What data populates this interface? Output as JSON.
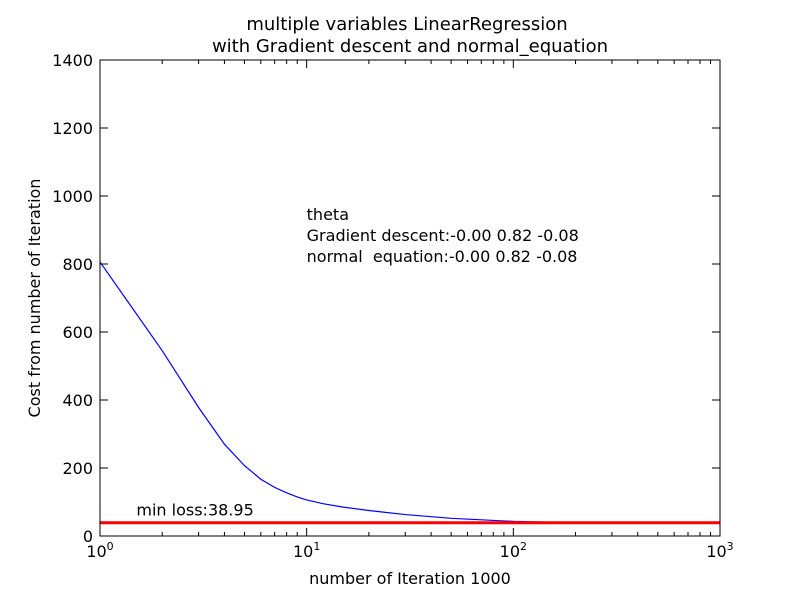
{
  "chart_data": {
    "type": "line",
    "title": "multiple variables LinearRegression",
    "subtitle": "with Gradient descent and normal_equation",
    "xlabel": "number of Iteration 1000",
    "ylabel": "Cost from number of Iteration",
    "xscale": "log",
    "xlim": [
      1,
      1000
    ],
    "ylim": [
      0,
      1400
    ],
    "grid": false,
    "y_ticks": [
      "0",
      "200",
      "400",
      "600",
      "800",
      "1000",
      "1200",
      "1400"
    ],
    "x_ticks": [
      {
        "base": "10",
        "exp": "0"
      },
      {
        "base": "10",
        "exp": "1"
      },
      {
        "base": "10",
        "exp": "2"
      },
      {
        "base": "10",
        "exp": "3"
      }
    ],
    "series": [
      {
        "color": "#0000ff",
        "x": [
          1,
          2,
          3,
          4,
          5,
          6,
          7,
          8,
          9,
          10,
          12,
          15,
          20,
          30,
          50,
          100,
          200,
          500,
          1000
        ],
        "y": [
          806,
          545,
          378,
          270,
          207,
          167,
          143,
          127,
          115,
          106,
          95,
          85,
          75,
          63,
          52,
          43,
          39,
          39,
          39
        ]
      }
    ],
    "hlines": [
      {
        "y": 38.95,
        "color": "#ff0000"
      }
    ],
    "annotations": [
      {
        "id": "min-loss",
        "text": "min loss:38.95",
        "x": 1.5,
        "y": 60
      },
      {
        "id": "theta-title",
        "text": "theta",
        "x": 10,
        "y": 930
      },
      {
        "id": "theta-gd",
        "text": "Gradient descent:-0.00 0.82 -0.08",
        "x": 10,
        "y": 868
      },
      {
        "id": "theta-ne",
        "text": "normal  equation:-0.00 0.82 -0.08",
        "x": 10,
        "y": 806
      }
    ]
  }
}
